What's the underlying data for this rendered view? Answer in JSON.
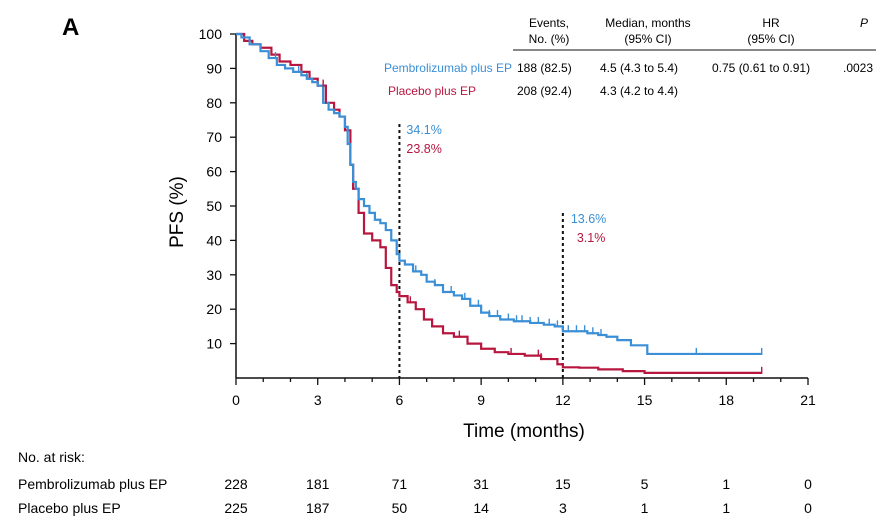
{
  "panel_label": "A",
  "colors": {
    "pembro": "#3a8fd6",
    "placebo": "#b7173f",
    "axis": "#111111"
  },
  "chart_data": {
    "type": "line",
    "subtype": "kaplan-meier step",
    "xlabel": "Time (months)",
    "ylabel": "PFS (%)",
    "xlim": [
      0,
      21
    ],
    "ylim": [
      0,
      100
    ],
    "x_ticks": [
      "0",
      "3",
      "6",
      "9",
      "12",
      "15",
      "18",
      "21"
    ],
    "y_ticks": [
      "10",
      "20",
      "30",
      "40",
      "50",
      "60",
      "70",
      "80",
      "90",
      "100"
    ],
    "series": [
      {
        "name": "Pembrolizumab plus EP",
        "color": "#3a8fd6",
        "x": [
          0,
          0.2,
          0.5,
          0.9,
          1.2,
          1.5,
          1.8,
          2.1,
          2.4,
          2.6,
          2.8,
          3.0,
          3.2,
          3.4,
          3.6,
          3.8,
          4.0,
          4.1,
          4.2,
          4.3,
          4.4,
          4.5,
          4.7,
          4.9,
          5.1,
          5.3,
          5.5,
          5.7,
          5.9,
          6.0,
          6.2,
          6.5,
          6.8,
          7.0,
          7.3,
          7.6,
          8.0,
          8.3,
          8.6,
          9.0,
          9.3,
          9.7,
          10.2,
          10.8,
          11.3,
          11.7,
          12.0,
          12.4,
          12.9,
          13.3,
          13.6,
          14.0,
          14.5,
          15.1,
          15.6,
          16.5,
          17.5,
          18.5,
          19.3
        ],
        "y": [
          100,
          99,
          97,
          95,
          93,
          91,
          90,
          89,
          88,
          87,
          86,
          85,
          80,
          78,
          77,
          76,
          73,
          68,
          62,
          57,
          55,
          52,
          50,
          48,
          46,
          45,
          43,
          40,
          36,
          34.1,
          33,
          31,
          30,
          28,
          27,
          25,
          24,
          23,
          21,
          19,
          18,
          17,
          16.5,
          16,
          15.5,
          15,
          13.6,
          13.6,
          13,
          12.5,
          12,
          11,
          9.5,
          7,
          7,
          7,
          7,
          7,
          7
        ]
      },
      {
        "name": "Placebo plus EP",
        "color": "#b7173f",
        "x": [
          0,
          0.3,
          0.6,
          0.9,
          1.3,
          1.6,
          2.0,
          2.4,
          2.7,
          3.0,
          3.3,
          3.6,
          3.8,
          4.0,
          4.2,
          4.3,
          4.5,
          4.7,
          5.0,
          5.3,
          5.5,
          5.7,
          5.9,
          6.0,
          6.3,
          6.6,
          6.9,
          7.2,
          7.6,
          8.0,
          8.5,
          9.0,
          9.5,
          10.0,
          10.6,
          11.2,
          11.8,
          12.0,
          12.6,
          13.3,
          14.2,
          15.0,
          16.0,
          17.0,
          18.0,
          19.3
        ],
        "y": [
          100,
          98,
          97,
          96,
          94,
          92,
          91,
          89,
          87,
          85,
          80,
          78,
          76,
          72,
          62,
          55,
          48,
          42,
          40,
          38,
          32,
          27,
          25,
          23.8,
          22,
          20,
          17,
          15,
          13,
          12,
          10,
          8.5,
          7.5,
          7,
          6.5,
          5.5,
          4,
          3.1,
          3,
          2.5,
          2,
          1.5,
          1.5,
          1.5,
          1.5,
          1.5
        ]
      }
    ],
    "censor_marks": {
      "pembro": [
        1.45,
        2.3,
        2.6,
        4.9,
        6.6,
        7.3,
        7.9,
        8.4,
        8.9,
        9.3,
        9.6,
        10.0,
        10.3,
        10.5,
        10.8,
        11.1,
        11.5,
        11.8,
        12.2,
        12.5,
        12.8,
        13.1,
        13.4,
        15.1,
        16.9,
        19.3
      ],
      "placebo": [
        3.2,
        3.3,
        5.5,
        6.4,
        8.2,
        10.1,
        11.1,
        11.2,
        19.3
      ]
    },
    "reference_lines": [
      {
        "x": 6,
        "labels": [
          "34.1%",
          "23.8%"
        ]
      },
      {
        "x": 12,
        "labels": [
          "13.6%",
          "3.1%"
        ]
      }
    ]
  },
  "stats_table": {
    "headers": [
      {
        "line1": "Events,",
        "line2": "No. (%)"
      },
      {
        "line1": "Median, months",
        "line2": "(95% CI)"
      },
      {
        "line1": "HR",
        "line2": "(95% CI)"
      },
      {
        "line1": "P",
        "line2": ""
      }
    ],
    "rows": [
      {
        "label": "Pembrolizumab plus EP",
        "events": "188 (82.5)",
        "median": "4.5 (4.3 to 5.4)",
        "hr": "0.75 (0.61 to 0.91)",
        "p": ".0023"
      },
      {
        "label": "Placebo plus EP",
        "events": "208 (92.4)",
        "median": "4.3 (4.2 to 4.4)",
        "hr": "",
        "p": ""
      }
    ]
  },
  "risk_table": {
    "title": "No. at risk:",
    "rows": [
      {
        "label": "Pembrolizumab plus EP",
        "values": [
          "228",
          "181",
          "71",
          "31",
          "15",
          "5",
          "1",
          "0"
        ]
      },
      {
        "label": "Placebo plus EP",
        "values": [
          "225",
          "187",
          "50",
          "14",
          "3",
          "1",
          "1",
          "0"
        ]
      }
    ]
  }
}
